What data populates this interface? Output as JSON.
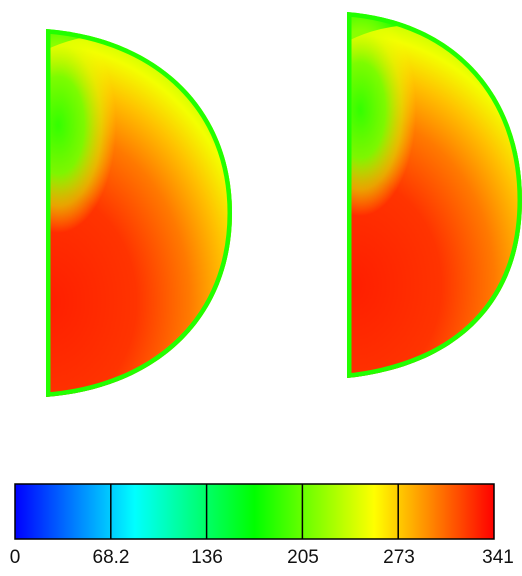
{
  "colorbar": {
    "colors": [
      "#0000ff",
      "#00ffff",
      "#00ff00",
      "#ffff00",
      "#ff0000"
    ],
    "range": [
      0,
      341
    ],
    "segments": 5,
    "tick_labels": [
      "0",
      "68.2",
      "136",
      "205",
      "273",
      "341"
    ]
  },
  "plots": [
    {
      "type": "half-disk contour field",
      "palette": "green-yellow-orange-red"
    },
    {
      "type": "half-disk contour field",
      "palette": "green-yellow-orange-red"
    }
  ]
}
